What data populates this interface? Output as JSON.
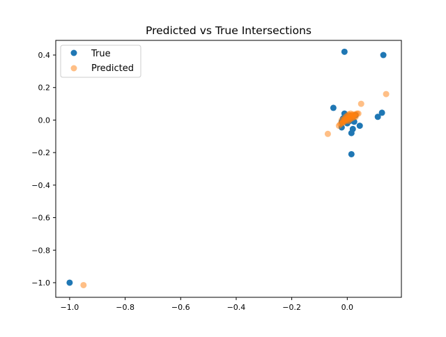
{
  "chart_data": {
    "type": "scatter",
    "title": "Predicted vs True Intersections",
    "xlabel": "",
    "ylabel": "",
    "xlim": [
      -1.05,
      0.195
    ],
    "ylim": [
      -1.09,
      0.49
    ],
    "xticks": [
      -1.0,
      -0.8,
      -0.6,
      -0.4,
      -0.2,
      0.0
    ],
    "xtick_labels": [
      "−1.0",
      "−0.8",
      "−0.6",
      "−0.4",
      "−0.2",
      "0.0"
    ],
    "yticks": [
      0.4,
      0.2,
      0.0,
      -0.2,
      -0.4,
      -0.6,
      -0.8,
      -1.0
    ],
    "ytick_labels": [
      "0.4",
      "0.2",
      "0.0",
      "−0.2",
      "−0.4",
      "−0.6",
      "−0.8",
      "−1.0"
    ],
    "grid": false,
    "legend_position": "top-left",
    "series": [
      {
        "name": "True",
        "color": "#1f77b4",
        "points": [
          [
            -1.0,
            -1.0
          ],
          [
            -0.01,
            0.42
          ],
          [
            0.13,
            0.4
          ],
          [
            -0.05,
            0.075
          ],
          [
            0.125,
            0.045
          ],
          [
            0.11,
            0.02
          ],
          [
            -0.01,
            0.04
          ],
          [
            0.045,
            -0.035
          ],
          [
            0.02,
            -0.055
          ],
          [
            0.015,
            -0.08
          ],
          [
            0.015,
            -0.21
          ],
          [
            -0.02,
            -0.045
          ],
          [
            -0.02,
            -0.01
          ],
          [
            0.0,
            -0.02
          ],
          [
            0.01,
            -0.005
          ],
          [
            -0.005,
            0.0
          ],
          [
            0.005,
            0.01
          ],
          [
            0.015,
            0.015
          ],
          [
            -0.01,
            0.005
          ],
          [
            0.02,
            0.02
          ],
          [
            0.0,
            0.005
          ],
          [
            0.03,
            0.03
          ],
          [
            -0.015,
            0.01
          ],
          [
            0.025,
            -0.01
          ],
          [
            0.01,
            0.025
          ]
        ]
      },
      {
        "name": "Predicted",
        "color": "#ff7f0e",
        "points": [
          [
            -0.95,
            -1.015
          ],
          [
            0.14,
            0.16
          ],
          [
            0.05,
            0.1
          ],
          [
            -0.07,
            -0.085
          ],
          [
            0.04,
            0.04
          ],
          [
            -0.03,
            -0.035
          ],
          [
            -0.02,
            -0.02
          ],
          [
            -0.015,
            -0.01
          ],
          [
            -0.01,
            0.0
          ],
          [
            -0.005,
            0.005
          ],
          [
            0.0,
            0.01
          ],
          [
            0.005,
            0.015
          ],
          [
            0.01,
            0.02
          ],
          [
            0.015,
            0.025
          ],
          [
            0.02,
            0.03
          ],
          [
            0.025,
            0.03
          ],
          [
            0.03,
            0.035
          ],
          [
            0.035,
            0.04
          ],
          [
            -0.025,
            -0.025
          ],
          [
            -0.01,
            0.01
          ],
          [
            0.0,
            0.0
          ],
          [
            0.005,
            -0.005
          ],
          [
            0.01,
            0.005
          ],
          [
            0.015,
            0.01
          ],
          [
            0.02,
            0.015
          ],
          [
            0.025,
            0.02
          ],
          [
            -0.005,
            0.02
          ],
          [
            0.0,
            0.025
          ],
          [
            0.01,
            0.03
          ],
          [
            0.02,
            0.035
          ],
          [
            -0.02,
            0.0
          ],
          [
            -0.015,
            -0.015
          ],
          [
            0.03,
            0.02
          ],
          [
            0.005,
            0.035
          ],
          [
            0.012,
            0.04
          ],
          [
            -0.008,
            -0.008
          ]
        ]
      }
    ]
  }
}
